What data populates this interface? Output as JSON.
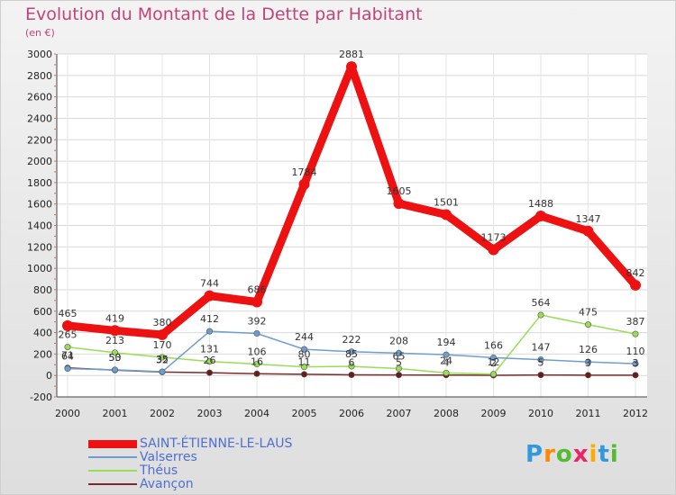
{
  "title": "Evolution du Montant de la Dette par Habitant",
  "unit": "(en €)",
  "logo": "Proxiti",
  "chart_data": {
    "type": "line",
    "x": [
      "2000",
      "2001",
      "2002",
      "2003",
      "2004",
      "2005",
      "2006",
      "2007",
      "2008",
      "2009",
      "2010",
      "2011",
      "2012"
    ],
    "ylim": [
      -200,
      3000
    ],
    "yticks": [
      -200,
      0,
      200,
      400,
      600,
      800,
      1000,
      1200,
      1400,
      1600,
      1800,
      2000,
      2200,
      2400,
      2600,
      2800,
      3000
    ],
    "grid": true,
    "legend_position": "bottom-left",
    "series": [
      {
        "name": "SAINT-ÉTIENNE-LE-LAUS",
        "color": "#ee1111",
        "values": [
          465,
          419,
          380,
          744,
          686,
          1784,
          2881,
          1605,
          1501,
          1173,
          1488,
          1347,
          842
        ],
        "labels": [
          "465",
          "419",
          "380",
          "744",
          "686",
          "1784",
          "2881",
          "1605",
          "1501",
          "1173",
          "1488",
          "1347",
          "842"
        ]
      },
      {
        "name": "Valserres",
        "color": "#6e9ed1",
        "values": [
          64,
          53,
          35,
          412,
          392,
          244,
          222,
          208,
          194,
          166,
          147,
          126,
          110
        ],
        "labels": [
          "64",
          "53",
          "35",
          "412",
          "392",
          "244",
          "222",
          "208",
          "194",
          "166",
          "147",
          "126",
          "110"
        ]
      },
      {
        "name": "Théus",
        "color": "#99dd55",
        "values": [
          265,
          213,
          170,
          131,
          106,
          80,
          85,
          65,
          24,
          12,
          564,
          475,
          387
        ],
        "labels": [
          "265",
          "213",
          "170",
          "131",
          "106",
          "80",
          "85",
          "65",
          "24",
          "12",
          "564",
          "475",
          "387"
        ]
      },
      {
        "name": "Avançon",
        "color": "#7a2a2a",
        "values": [
          71,
          50,
          32,
          26,
          16,
          11,
          6,
          5,
          4,
          2,
          5,
          3,
          3
        ],
        "labels": [
          "71",
          "50",
          "32",
          "26",
          "16",
          "11",
          "6",
          "5",
          "4",
          "2",
          "5",
          "3",
          "3"
        ]
      }
    ]
  }
}
